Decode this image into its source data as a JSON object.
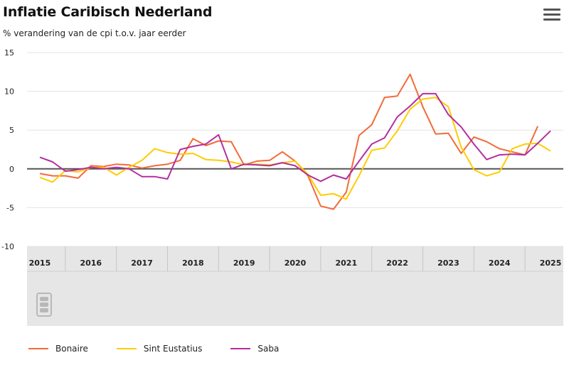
{
  "header": {
    "title": "Inflatie Caribisch Nederland",
    "subtitle": "% verandering van de cpi t.o.v. jaar eerder",
    "menu_icon": "hamburger-menu-icon"
  },
  "logo_icon": "cbs-logo-icon",
  "chart_data": {
    "type": "line",
    "title": "Inflatie Caribisch Nederland",
    "subtitle": "% verandering van de cpi t.o.v. jaar eerder",
    "xlabel": "",
    "ylabel": "",
    "ylim": [
      -10,
      15
    ],
    "yticks": [
      15,
      10,
      5,
      0,
      -5,
      -10
    ],
    "xlim": [
      2014.75,
      2025.25
    ],
    "year_labels": [
      "2015",
      "2016",
      "2017",
      "2018",
      "2019",
      "2020",
      "2021",
      "2022",
      "2023",
      "2024",
      "2025"
    ],
    "grid": true,
    "legend_position": "bottom",
    "series": [
      {
        "name": "Bonaire",
        "color": "#f26b3a",
        "points": [
          [
            2015.0,
            -0.6
          ],
          [
            2015.25,
            -0.9
          ],
          [
            2015.5,
            -0.9
          ],
          [
            2015.75,
            -1.2
          ],
          [
            2016.0,
            0.4
          ],
          [
            2016.25,
            0.3
          ],
          [
            2016.5,
            0.6
          ],
          [
            2016.75,
            0.5
          ],
          [
            2017.0,
            0.1
          ],
          [
            2017.25,
            0.4
          ],
          [
            2017.5,
            0.6
          ],
          [
            2017.75,
            1.1
          ],
          [
            2018.0,
            3.9
          ],
          [
            2018.25,
            3.0
          ],
          [
            2018.5,
            3.6
          ],
          [
            2018.75,
            3.5
          ],
          [
            2019.0,
            0.5
          ],
          [
            2019.25,
            1.0
          ],
          [
            2019.5,
            1.1
          ],
          [
            2019.75,
            2.2
          ],
          [
            2020.0,
            1.0
          ],
          [
            2020.25,
            -0.9
          ],
          [
            2020.5,
            -4.8
          ],
          [
            2020.75,
            -5.2
          ],
          [
            2021.0,
            -3.0
          ],
          [
            2021.25,
            4.3
          ],
          [
            2021.5,
            5.7
          ],
          [
            2021.75,
            9.2
          ],
          [
            2022.0,
            9.4
          ],
          [
            2022.25,
            12.2
          ],
          [
            2022.5,
            8.0
          ],
          [
            2022.75,
            4.5
          ],
          [
            2023.0,
            4.6
          ],
          [
            2023.25,
            2.0
          ],
          [
            2023.5,
            4.1
          ],
          [
            2023.75,
            3.5
          ],
          [
            2024.0,
            2.6
          ],
          [
            2024.25,
            2.2
          ],
          [
            2024.5,
            1.8
          ],
          [
            2024.75,
            5.5
          ]
        ]
      },
      {
        "name": "Sint Eustatius",
        "color": "#ffcc00",
        "points": [
          [
            2015.0,
            -1.1
          ],
          [
            2015.25,
            -1.7
          ],
          [
            2015.5,
            -0.2
          ],
          [
            2015.75,
            -0.4
          ],
          [
            2016.0,
            0.2
          ],
          [
            2016.25,
            0.2
          ],
          [
            2016.5,
            -0.8
          ],
          [
            2016.75,
            0.2
          ],
          [
            2017.0,
            1.1
          ],
          [
            2017.25,
            2.6
          ],
          [
            2017.5,
            2.1
          ],
          [
            2017.75,
            1.9
          ],
          [
            2018.0,
            2.0
          ],
          [
            2018.25,
            1.2
          ],
          [
            2018.5,
            1.1
          ],
          [
            2018.75,
            0.9
          ],
          [
            2019.0,
            0.5
          ],
          [
            2019.25,
            0.6
          ],
          [
            2019.5,
            0.5
          ],
          [
            2019.75,
            0.8
          ],
          [
            2020.0,
            1.0
          ],
          [
            2020.25,
            -0.7
          ],
          [
            2020.5,
            -3.4
          ],
          [
            2020.75,
            -3.2
          ],
          [
            2021.0,
            -3.9
          ],
          [
            2021.25,
            -0.9
          ],
          [
            2021.5,
            2.4
          ],
          [
            2021.75,
            2.7
          ],
          [
            2022.0,
            4.9
          ],
          [
            2022.25,
            7.7
          ],
          [
            2022.5,
            9.0
          ],
          [
            2022.75,
            9.2
          ],
          [
            2023.0,
            8.0
          ],
          [
            2023.25,
            2.8
          ],
          [
            2023.5,
            -0.1
          ],
          [
            2023.75,
            -0.9
          ],
          [
            2024.0,
            -0.4
          ],
          [
            2024.25,
            2.6
          ],
          [
            2024.5,
            3.2
          ],
          [
            2024.75,
            3.3
          ],
          [
            2025.0,
            2.3
          ]
        ]
      },
      {
        "name": "Saba",
        "color": "#b22f9e",
        "points": [
          [
            2015.0,
            1.5
          ],
          [
            2015.25,
            0.9
          ],
          [
            2015.5,
            -0.3
          ],
          [
            2015.75,
            -0.1
          ],
          [
            2016.0,
            0.2
          ],
          [
            2016.25,
            0.0
          ],
          [
            2016.5,
            0.2
          ],
          [
            2016.75,
            0.0
          ],
          [
            2017.0,
            -1.0
          ],
          [
            2017.25,
            -1.0
          ],
          [
            2017.5,
            -1.3
          ],
          [
            2017.75,
            2.5
          ],
          [
            2018.0,
            2.9
          ],
          [
            2018.25,
            3.2
          ],
          [
            2018.5,
            4.4
          ],
          [
            2018.75,
            0.0
          ],
          [
            2019.0,
            0.6
          ],
          [
            2019.25,
            0.5
          ],
          [
            2019.5,
            0.4
          ],
          [
            2019.75,
            0.8
          ],
          [
            2020.0,
            0.4
          ],
          [
            2020.25,
            -0.8
          ],
          [
            2020.5,
            -1.6
          ],
          [
            2020.75,
            -0.8
          ],
          [
            2021.0,
            -1.3
          ],
          [
            2021.25,
            1.0
          ],
          [
            2021.5,
            3.2
          ],
          [
            2021.75,
            4.0
          ],
          [
            2022.0,
            6.7
          ],
          [
            2022.25,
            8.1
          ],
          [
            2022.5,
            9.7
          ],
          [
            2022.75,
            9.7
          ],
          [
            2023.0,
            7.0
          ],
          [
            2023.25,
            5.4
          ],
          [
            2023.5,
            3.2
          ],
          [
            2023.75,
            1.2
          ],
          [
            2024.0,
            1.8
          ],
          [
            2024.25,
            1.9
          ],
          [
            2024.5,
            1.8
          ],
          [
            2024.75,
            3.3
          ],
          [
            2025.0,
            4.9
          ]
        ]
      }
    ]
  }
}
